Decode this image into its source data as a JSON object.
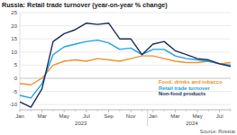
{
  "chart_data": {
    "type": "line",
    "title": "Russia: Retail trade turnover (year-on-year % change)",
    "source": "Source: Rosstat",
    "categories": [
      "Jan",
      null,
      "Mar",
      null,
      "May",
      null,
      "Jul",
      null,
      "Sep",
      null,
      "Nov",
      null,
      "Jan",
      null,
      "Mar",
      null,
      "May",
      null,
      "Jul",
      null
    ],
    "groups": [
      {
        "label": "2023",
        "count": 12
      },
      {
        "label": "2024",
        "count": 8
      }
    ],
    "ylim": [
      -12,
      25
    ],
    "yticks": [
      -10,
      -5,
      0,
      5,
      10,
      15,
      20,
      25
    ],
    "grid": true,
    "legend": "right",
    "series": [
      {
        "name": "Food, drinks and tobacco",
        "color": "#f0922b",
        "values": [
          -2,
          -2.5,
          0,
          5,
          6.5,
          7,
          6.5,
          7.5,
          7,
          6.5,
          7.5,
          8.5,
          8.5,
          7.5,
          6.5,
          6,
          6,
          6.5,
          5.5,
          6
        ]
      },
      {
        "name": "Retail trade turnover",
        "color": "#1aa3e0",
        "values": [
          -6.5,
          -7.5,
          -2,
          9,
          12,
          13,
          14,
          14.5,
          13.5,
          11,
          11.5,
          9,
          11,
          11,
          8.5,
          7.5,
          7,
          6.5,
          5.5,
          5
        ]
      },
      {
        "name": "Non-food products",
        "color": "#1f2a5c",
        "values": [
          -9,
          -11,
          -4,
          14,
          17,
          18.5,
          21,
          20.5,
          21,
          15,
          15,
          9,
          13,
          14,
          10.5,
          9,
          7.5,
          7,
          5.5,
          4.5
        ]
      }
    ]
  }
}
